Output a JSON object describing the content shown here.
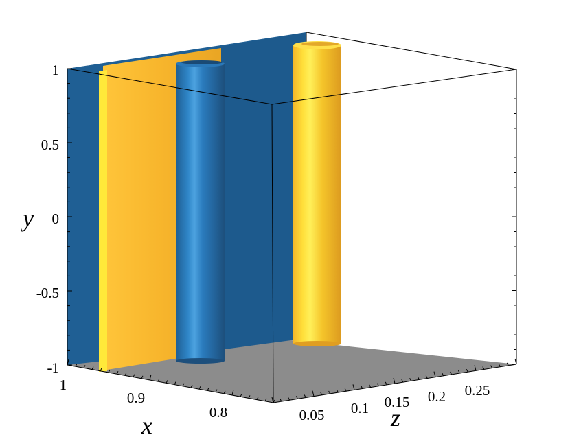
{
  "chart_data": {
    "type": "3d-isosurface",
    "title": "",
    "axes": {
      "x": {
        "label": "x",
        "range": [
          0.75,
          1.0
        ],
        "ticks": [
          {
            "value": 1.0,
            "label": "1"
          },
          {
            "value": 0.9,
            "label": "0.9"
          },
          {
            "value": 0.8,
            "label": "0.8"
          }
        ]
      },
      "y": {
        "label": "y",
        "range": [
          -1,
          1
        ],
        "ticks": [
          {
            "value": 1,
            "label": "1"
          },
          {
            "value": 0.5,
            "label": "0.5"
          },
          {
            "value": 0,
            "label": "0"
          },
          {
            "value": -0.5,
            "label": "-0.5"
          },
          {
            "value": -1,
            "label": "-1"
          }
        ]
      },
      "z": {
        "label": "z",
        "range": [
          0,
          0.3
        ],
        "ticks": [
          {
            "value": 0.05,
            "label": "0.05"
          },
          {
            "value": 0.1,
            "label": "0.1"
          },
          {
            "value": 0.15,
            "label": "0.15"
          },
          {
            "value": 0.2,
            "label": "0.2"
          },
          {
            "value": 0.25,
            "label": "0.25"
          }
        ]
      }
    },
    "floor_color": "#8c8c8c",
    "surfaces": [
      {
        "kind": "sheet",
        "color": "#1f5f94",
        "x": 1.0
      },
      {
        "kind": "sheet",
        "color": "#f6b52e",
        "x": 0.96
      },
      {
        "kind": "cylinder",
        "color": "#2e7fc1",
        "x": 0.86,
        "z": 0.03
      },
      {
        "kind": "cylinder",
        "color": "#f3c52b",
        "x": 0.78,
        "z": 0.08
      }
    ]
  }
}
